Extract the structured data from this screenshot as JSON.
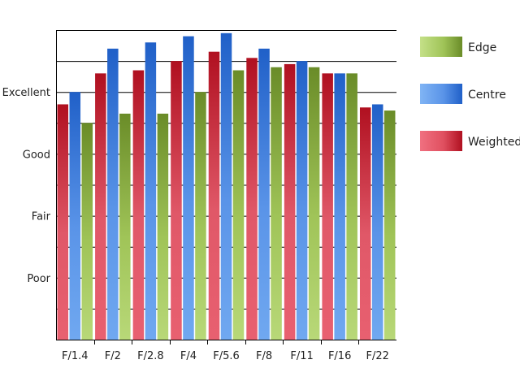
{
  "chart_data": {
    "type": "bar",
    "title": "",
    "xlabel": "",
    "ylabel": "",
    "categories": [
      "F/1.4",
      "F/2",
      "F/2.8",
      "F/4",
      "F/5.6",
      "F/8",
      "F/11",
      "F/16",
      "F/22"
    ],
    "y_tick_labels": [
      {
        "label": "Poor",
        "value": 2
      },
      {
        "label": "Fair",
        "value": 4
      },
      {
        "label": "Good",
        "value": 6
      },
      {
        "label": "Excellent",
        "value": 8
      }
    ],
    "ylim": [
      0,
      10
    ],
    "grid": "horizontal",
    "legend_position": "right",
    "series": [
      {
        "name": "Weighted",
        "color": "#cc2030",
        "values": [
          7.6,
          8.6,
          8.7,
          9.0,
          9.3,
          9.1,
          8.9,
          8.6,
          7.5
        ]
      },
      {
        "name": "Centre",
        "color": "#3a78d8",
        "values": [
          8.0,
          9.4,
          9.6,
          9.8,
          9.9,
          9.4,
          9.0,
          8.6,
          7.6
        ]
      },
      {
        "name": "Edge",
        "color": "#8ab040",
        "values": [
          7.0,
          7.3,
          7.3,
          8.0,
          8.7,
          8.8,
          8.8,
          8.6,
          7.4
        ]
      }
    ],
    "legend_order": [
      "Edge",
      "Centre",
      "Weighted"
    ]
  }
}
